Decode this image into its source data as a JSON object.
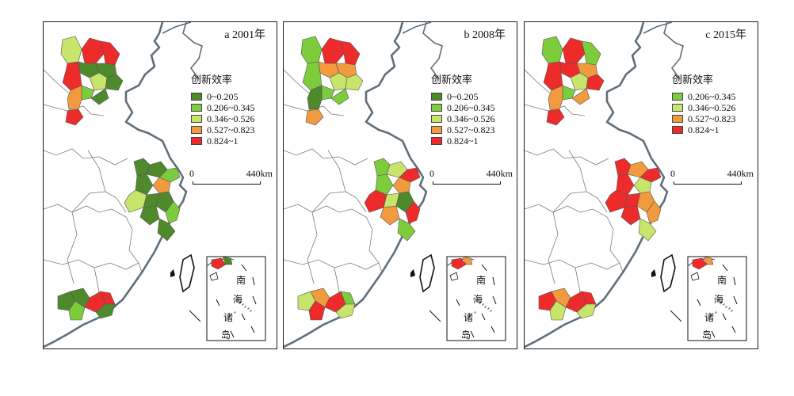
{
  "legend_title": "创新效率",
  "scale_bar": {
    "zero": "0",
    "length": "440km"
  },
  "inset_labels": [
    "南",
    "海",
    "诸",
    "岛"
  ],
  "colors": {
    "dark_green": "#4e8a2c",
    "green": "#7dcc3c",
    "light_green": "#c6e56a",
    "orange": "#f19a3e",
    "red": "#ee2b2b",
    "sea_coast": "#5f6e7a"
  },
  "panels": [
    {
      "label": "a",
      "year": "2001年",
      "legend": [
        {
          "range": "0~0.205",
          "color": "#4e8a2c"
        },
        {
          "range": "0.206~0.345",
          "color": "#7dcc3c"
        },
        {
          "range": "0.346~0.526",
          "color": "#c6e56a"
        },
        {
          "range": "0.527~0.823",
          "color": "#f19a3e"
        },
        {
          "range": "0.824~1",
          "color": "#ee2b2b"
        }
      ],
      "regions": {
        "north": [
          "#c6e56a",
          "#ee2b2b",
          "#ee2b2b",
          "#4e8a2c",
          "#ee2b2b",
          "#4e8a2c",
          "#c6e56a",
          "#4e8a2c",
          "#7dcc3c",
          "#f19a3e",
          "#ee2b2b",
          "#4e8a2c"
        ],
        "east": [
          "#4e8a2c",
          "#4e8a2c",
          "#7dcc3c",
          "#f19a3e",
          "#4e8a2c",
          "#4e8a2c",
          "#c6e56a",
          "#4e8a2c",
          "#4e8a2c",
          "#7dcc3c",
          "#4e8a2c"
        ],
        "south": [
          "#4e8a2c",
          "#4e8a2c",
          "#7dcc3c",
          "#ee2b2b",
          "#ee2b2b",
          "#4e8a2c"
        ]
      }
    },
    {
      "label": "b",
      "year": "2008年",
      "legend": [
        {
          "range": "0~0.205",
          "color": "#4e8a2c"
        },
        {
          "range": "0.206~0.345",
          "color": "#7dcc3c"
        },
        {
          "range": "0.346~0.526",
          "color": "#c6e56a"
        },
        {
          "range": "0.527~0.823",
          "color": "#f19a3e"
        },
        {
          "range": "0.824~1",
          "color": "#ee2b2b"
        }
      ],
      "regions": {
        "north": [
          "#7dcc3c",
          "#ee2b2b",
          "#ee2b2b",
          "#f19a3e",
          "#7dcc3c",
          "#f19a3e",
          "#c6e56a",
          "#c6e56a",
          "#7dcc3c",
          "#4e8a2c",
          "#f19a3e",
          "#7dcc3c"
        ],
        "east": [
          "#7dcc3c",
          "#c6e56a",
          "#ee2b2b",
          "#f19a3e",
          "#7dcc3c",
          "#c6e56a",
          "#ee2b2b",
          "#4e8a2c",
          "#f19a3e",
          "#ee2b2b",
          "#7dcc3c"
        ],
        "south": [
          "#c6e56a",
          "#f19a3e",
          "#ee2b2b",
          "#ee2b2b",
          "#7dcc3c",
          "#c6e56a"
        ]
      }
    },
    {
      "label": "c",
      "year": "2015年",
      "legend": [
        {
          "range": "0.206~0.345",
          "color": "#7dcc3c"
        },
        {
          "range": "0.346~0.526",
          "color": "#c6e56a"
        },
        {
          "range": "0.527~0.823",
          "color": "#f19a3e"
        },
        {
          "range": "0.824~1",
          "color": "#ee2b2b"
        }
      ],
      "regions": {
        "north": [
          "#7dcc3c",
          "#ee2b2b",
          "#7dcc3c",
          "#ee2b2b",
          "#ee2b2b",
          "#f19a3e",
          "#c6e56a",
          "#ee2b2b",
          "#7dcc3c",
          "#f19a3e",
          "#ee2b2b",
          "#f19a3e"
        ],
        "east": [
          "#ee2b2b",
          "#f19a3e",
          "#ee2b2b",
          "#c6e56a",
          "#ee2b2b",
          "#ee2b2b",
          "#ee2b2b",
          "#f19a3e",
          "#ee2b2b",
          "#f19a3e",
          "#c6e56a"
        ],
        "south": [
          "#ee2b2b",
          "#f19a3e",
          "#c6e56a",
          "#ee2b2b",
          "#ee2b2b",
          "#c6e56a"
        ]
      }
    }
  ]
}
